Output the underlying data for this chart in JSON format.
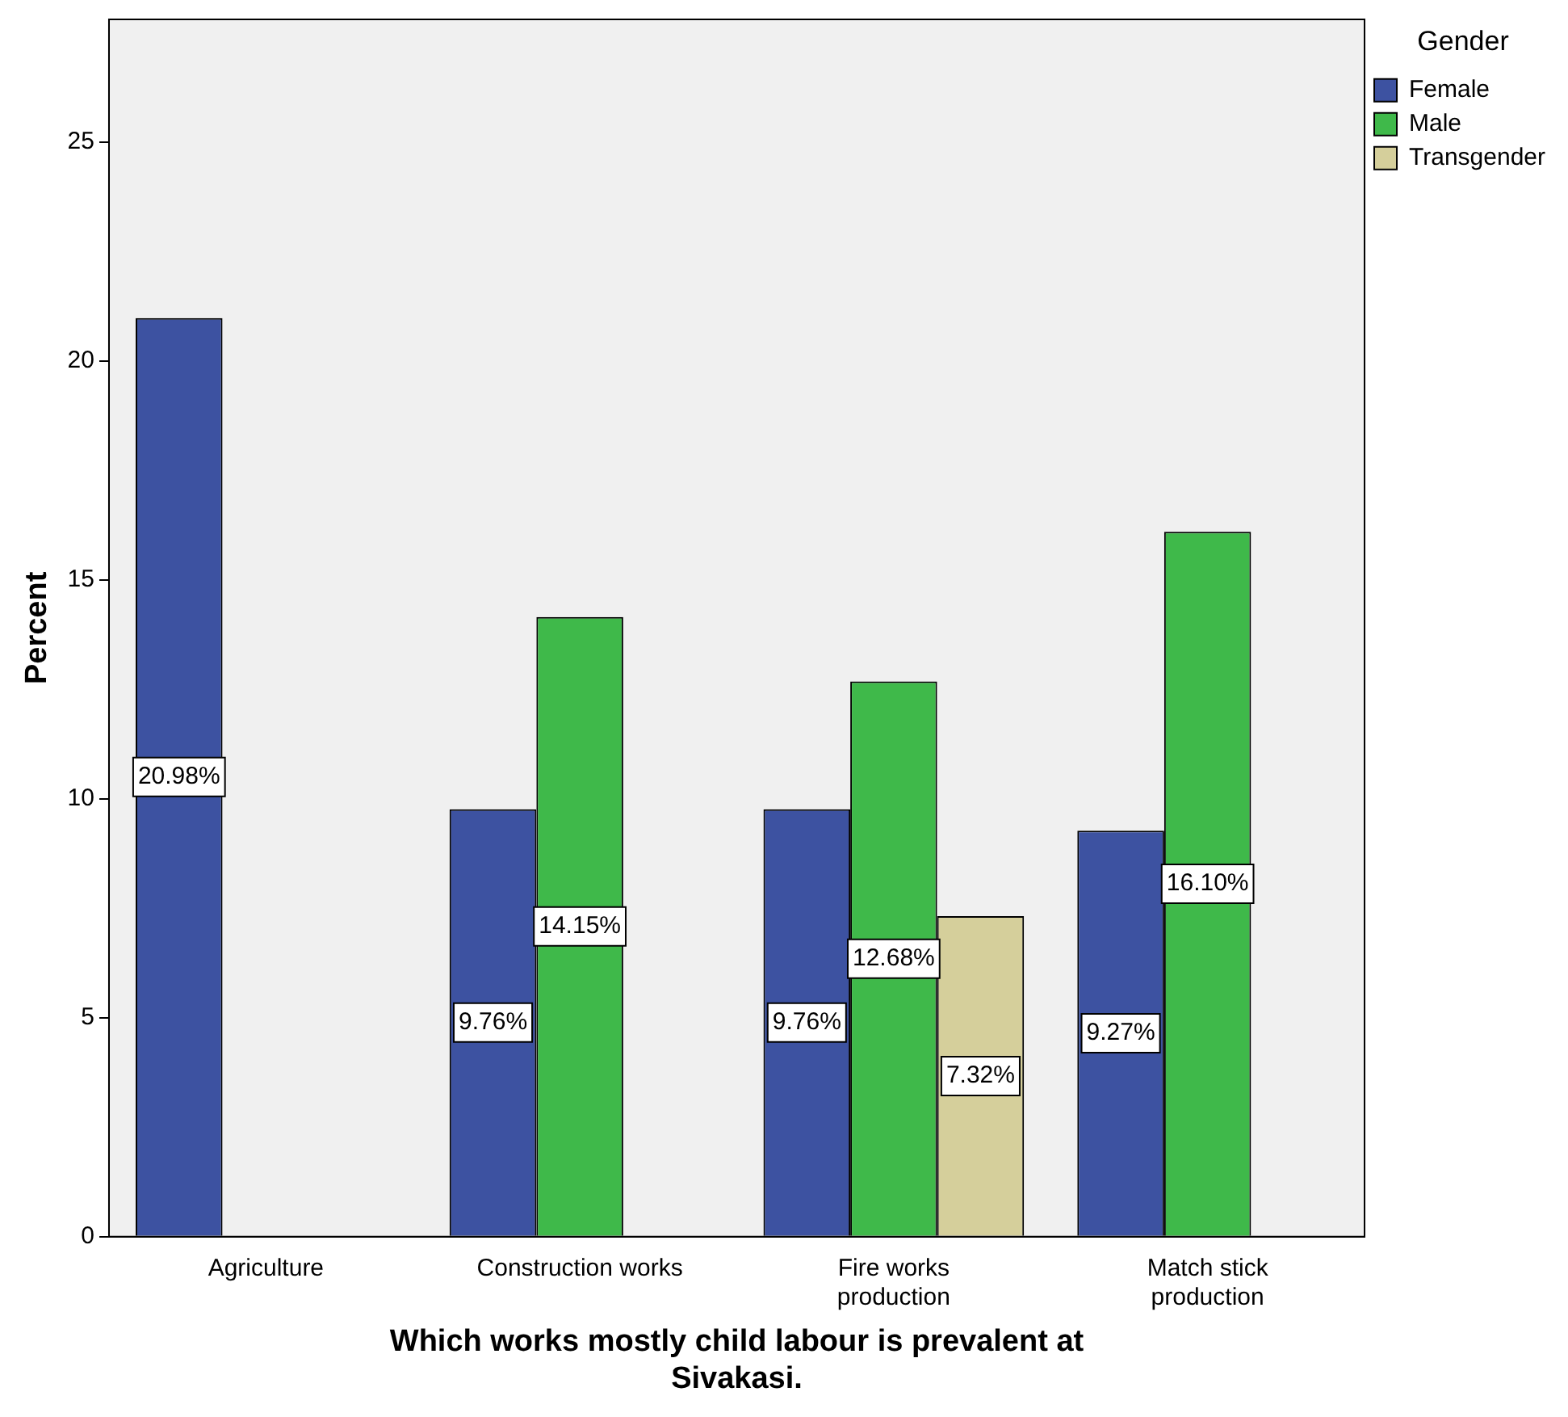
{
  "chart_data": {
    "type": "bar",
    "xlabel": "Which works mostly child labour is prevalent at Sivakasi.",
    "ylabel": "Percent",
    "legend_title": "Gender",
    "legend": "right",
    "categories": [
      "Agriculture",
      "Construction works",
      "Fire works production",
      "Match stick production"
    ],
    "ylim": [
      0,
      27.8
    ],
    "yticks": [
      0,
      5,
      10,
      15,
      20,
      25
    ],
    "series": [
      {
        "name": "Female",
        "color": "#3d52a1",
        "values": [
          20.98,
          9.76,
          9.76,
          9.27
        ],
        "value_labels": [
          "20.98%",
          "9.76%",
          "9.76%",
          "9.27%"
        ]
      },
      {
        "name": "Male",
        "color": "#3fb94a",
        "values": [
          null,
          14.15,
          12.68,
          16.1
        ],
        "value_labels": [
          null,
          "14.15%",
          "12.68%",
          "16.10%"
        ]
      },
      {
        "name": "Transgender",
        "color": "#d5cf9b",
        "values": [
          null,
          null,
          7.32,
          null
        ],
        "value_labels": [
          null,
          null,
          "7.32%",
          null
        ]
      }
    ]
  }
}
